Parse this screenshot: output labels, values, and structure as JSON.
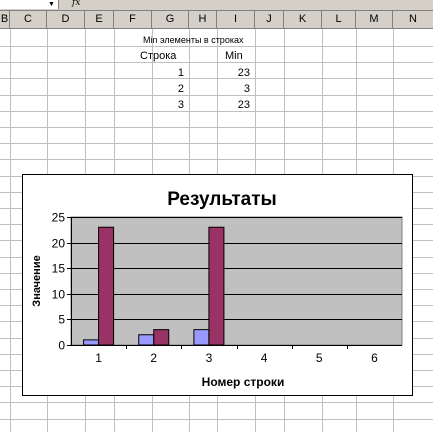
{
  "formula_bar": {
    "fx_symbol": "fx"
  },
  "columns": [
    "B",
    "C",
    "D",
    "E",
    "F",
    "G",
    "H",
    "I",
    "J",
    "K",
    "L",
    "M",
    "N"
  ],
  "sheet": {
    "table_title": "Min элементы в строках",
    "header_row": "Строка",
    "header_min": "Min",
    "rows": [
      {
        "row": "1",
        "min": "23"
      },
      {
        "row": "2",
        "min": "3"
      },
      {
        "row": "3",
        "min": "23"
      }
    ]
  },
  "chart_data": {
    "type": "bar",
    "title": "Результаты",
    "xlabel": "Номер строки",
    "ylabel": "Значение",
    "categories": [
      "1",
      "2",
      "3",
      "4",
      "5",
      "6"
    ],
    "series": [
      {
        "values": [
          1,
          2,
          3,
          null,
          null,
          null
        ]
      },
      {
        "values": [
          23,
          3,
          23,
          null,
          null,
          null
        ]
      }
    ],
    "ylim": [
      0,
      25
    ],
    "yticks": [
      "0",
      "5",
      "10",
      "15",
      "20",
      "25"
    ],
    "colors": [
      "#9999ff",
      "#993366"
    ],
    "plot_background": "#c0c0c0",
    "grid": true,
    "legend": "none"
  }
}
